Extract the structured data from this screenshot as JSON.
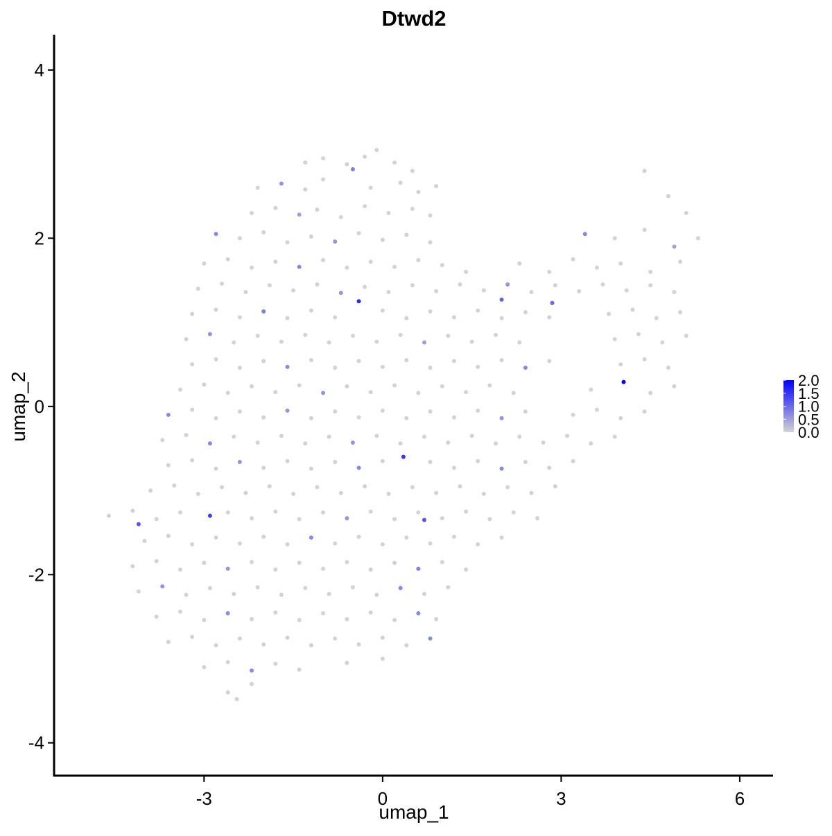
{
  "chart_data": {
    "type": "scatter",
    "title": "Dtwd2",
    "xlabel": "umap_1",
    "ylabel": "umap_2",
    "xlim": [
      -5.52,
      6.56
    ],
    "ylim": [
      -4.39,
      4.42
    ],
    "xticks": [
      -3,
      0,
      3,
      6
    ],
    "yticks": [
      -4,
      -2,
      0,
      2,
      4
    ],
    "color_low": "#d3d3d3",
    "color_high": "#0000ff",
    "color_lim": [
      0,
      2
    ],
    "color_ticks": [
      {
        "value": 0,
        "label": "0.0"
      },
      {
        "value": 0.5,
        "label": "0.5"
      },
      {
        "value": 1,
        "label": "1.0"
      },
      {
        "value": 1.5,
        "label": "1.5"
      },
      {
        "value": 2,
        "label": "2.0"
      }
    ],
    "points": [
      [
        -1.3,
        2.9,
        0
      ],
      [
        -1.0,
        2.95,
        0
      ],
      [
        -0.6,
        2.88,
        0
      ],
      [
        -0.3,
        2.97,
        0
      ],
      [
        -0.1,
        3.05,
        0
      ],
      [
        0.2,
        2.9,
        0
      ],
      [
        0.5,
        2.8,
        0
      ],
      [
        -2.1,
        2.6,
        0
      ],
      [
        -1.7,
        2.65,
        0.6
      ],
      [
        -1.3,
        2.58,
        0
      ],
      [
        -1.0,
        2.7,
        0
      ],
      [
        -0.5,
        2.82,
        0.8
      ],
      [
        -0.2,
        2.6,
        0
      ],
      [
        0.3,
        2.66,
        0
      ],
      [
        0.6,
        2.55,
        0
      ],
      [
        0.9,
        2.62,
        0
      ],
      [
        -2.2,
        2.3,
        0
      ],
      [
        -1.8,
        2.36,
        0
      ],
      [
        -1.4,
        2.28,
        0.5
      ],
      [
        -1.1,
        2.34,
        0
      ],
      [
        -0.7,
        2.25,
        0
      ],
      [
        -0.3,
        2.38,
        0
      ],
      [
        0.1,
        2.3,
        0
      ],
      [
        0.5,
        2.35,
        0
      ],
      [
        0.8,
        2.27,
        0
      ],
      [
        4.4,
        2.8,
        0
      ],
      [
        4.8,
        2.5,
        0
      ],
      [
        5.1,
        2.3,
        0
      ],
      [
        -2.8,
        2.05,
        0.7
      ],
      [
        -2.4,
        2.0,
        0
      ],
      [
        -2.0,
        2.07,
        0
      ],
      [
        -1.6,
        1.95,
        0
      ],
      [
        -1.2,
        2.02,
        0
      ],
      [
        -0.8,
        1.96,
        0.6
      ],
      [
        -0.4,
        2.06,
        0
      ],
      [
        0,
        1.98,
        0
      ],
      [
        0.4,
        2.04,
        0
      ],
      [
        0.8,
        1.95,
        0
      ],
      [
        3.4,
        2.05,
        0.7
      ],
      [
        3.9,
        2.0,
        0
      ],
      [
        4.4,
        2.1,
        0
      ],
      [
        4.9,
        1.9,
        0.5
      ],
      [
        5.3,
        2.0,
        0
      ],
      [
        -3.0,
        1.7,
        0
      ],
      [
        -2.6,
        1.75,
        0
      ],
      [
        -2.2,
        1.65,
        0
      ],
      [
        -1.8,
        1.72,
        0
      ],
      [
        -1.4,
        1.66,
        0.7
      ],
      [
        -1.0,
        1.74,
        0
      ],
      [
        -0.6,
        1.65,
        0
      ],
      [
        -0.2,
        1.72,
        0
      ],
      [
        0.2,
        1.66,
        0
      ],
      [
        0.6,
        1.74,
        0
      ],
      [
        1.0,
        1.68,
        0
      ],
      [
        1.4,
        1.6,
        0
      ],
      [
        2.3,
        1.7,
        0
      ],
      [
        2.8,
        1.6,
        0
      ],
      [
        3.2,
        1.75,
        0
      ],
      [
        3.6,
        1.65,
        0
      ],
      [
        4.0,
        1.7,
        0
      ],
      [
        4.5,
        1.6,
        0
      ],
      [
        5.0,
        1.72,
        0
      ],
      [
        -3.1,
        1.4,
        0
      ],
      [
        -2.7,
        1.46,
        0
      ],
      [
        -2.3,
        1.36,
        0
      ],
      [
        -1.9,
        1.44,
        0
      ],
      [
        -1.5,
        1.38,
        0
      ],
      [
        -1.1,
        1.45,
        0
      ],
      [
        -0.7,
        1.35,
        0.6
      ],
      [
        -0.3,
        1.42,
        0
      ],
      [
        0.1,
        1.36,
        0
      ],
      [
        0.5,
        1.44,
        0
      ],
      [
        0.9,
        1.37,
        0
      ],
      [
        1.3,
        1.45,
        0
      ],
      [
        1.7,
        1.38,
        0
      ],
      [
        2.1,
        1.45,
        0.6
      ],
      [
        2.5,
        1.36,
        0
      ],
      [
        2.9,
        1.44,
        0
      ],
      [
        3.3,
        1.37,
        0
      ],
      [
        3.7,
        1.45,
        0
      ],
      [
        4.1,
        1.38,
        0
      ],
      [
        4.5,
        1.44,
        0
      ],
      [
        4.9,
        1.36,
        0
      ],
      [
        -0.4,
        1.25,
        1.6
      ],
      [
        2.0,
        1.27,
        1.1
      ],
      [
        2.85,
        1.23,
        1.0
      ],
      [
        -3.2,
        1.1,
        0
      ],
      [
        -2.8,
        1.15,
        0
      ],
      [
        -2.4,
        1.06,
        0
      ],
      [
        -2.0,
        1.13,
        0.8
      ],
      [
        -1.6,
        1.05,
        0
      ],
      [
        -1.2,
        1.14,
        0
      ],
      [
        -0.8,
        1.06,
        0
      ],
      [
        0,
        1.14,
        0
      ],
      [
        0.4,
        1.05,
        0
      ],
      [
        0.8,
        1.13,
        0
      ],
      [
        1.2,
        1.06,
        0
      ],
      [
        1.6,
        1.14,
        0
      ],
      [
        2.0,
        1.05,
        0
      ],
      [
        2.4,
        1.12,
        0
      ],
      [
        2.8,
        1.06,
        0
      ],
      [
        3.8,
        1.1,
        0
      ],
      [
        4.2,
        1.15,
        0
      ],
      [
        4.6,
        1.05,
        0
      ],
      [
        5.0,
        1.12,
        0
      ],
      [
        -3.3,
        0.8,
        0
      ],
      [
        -2.9,
        0.86,
        0.6
      ],
      [
        -2.5,
        0.76,
        0
      ],
      [
        -2.1,
        0.84,
        0
      ],
      [
        -1.7,
        0.77,
        0
      ],
      [
        -1.3,
        0.85,
        0
      ],
      [
        -0.9,
        0.76,
        0
      ],
      [
        -0.5,
        0.84,
        0
      ],
      [
        -0.1,
        0.77,
        0
      ],
      [
        0.3,
        0.85,
        0
      ],
      [
        0.7,
        0.76,
        0.5
      ],
      [
        1.1,
        0.84,
        0
      ],
      [
        1.5,
        0.77,
        0
      ],
      [
        1.9,
        0.85,
        0
      ],
      [
        2.3,
        0.76,
        0
      ],
      [
        3.9,
        0.8,
        0
      ],
      [
        4.3,
        0.86,
        0
      ],
      [
        4.7,
        0.76,
        0
      ],
      [
        5.1,
        0.84,
        0
      ],
      [
        -3.2,
        0.5,
        0
      ],
      [
        -2.8,
        0.56,
        0
      ],
      [
        -2.4,
        0.46,
        0
      ],
      [
        -2.0,
        0.54,
        0
      ],
      [
        -1.6,
        0.47,
        0.7
      ],
      [
        -1.2,
        0.55,
        0
      ],
      [
        -0.8,
        0.46,
        0
      ],
      [
        -0.4,
        0.54,
        0
      ],
      [
        0,
        0.47,
        0
      ],
      [
        0.4,
        0.55,
        0
      ],
      [
        0.8,
        0.46,
        0
      ],
      [
        1.2,
        0.54,
        0
      ],
      [
        1.6,
        0.47,
        0
      ],
      [
        2.0,
        0.55,
        0
      ],
      [
        2.4,
        0.46,
        0.7
      ],
      [
        2.8,
        0.54,
        0
      ],
      [
        4.0,
        0.5,
        0
      ],
      [
        4.4,
        0.56,
        0
      ],
      [
        4.8,
        0.46,
        0
      ],
      [
        -3.4,
        0.2,
        0
      ],
      [
        -3.0,
        0.26,
        0
      ],
      [
        -2.6,
        0.16,
        0
      ],
      [
        -2.2,
        0.24,
        0
      ],
      [
        -1.8,
        0.17,
        0
      ],
      [
        -1.4,
        0.25,
        0
      ],
      [
        -1.0,
        0.16,
        0.6
      ],
      [
        -0.6,
        0.24,
        0
      ],
      [
        -0.2,
        0.17,
        0
      ],
      [
        0.2,
        0.25,
        0
      ],
      [
        0.6,
        0.16,
        0
      ],
      [
        1.0,
        0.24,
        0
      ],
      [
        1.4,
        0.17,
        0
      ],
      [
        1.8,
        0.25,
        0
      ],
      [
        2.2,
        0.16,
        0
      ],
      [
        3.5,
        0.2,
        0
      ],
      [
        4.05,
        0.29,
        2
      ],
      [
        4.5,
        0.16,
        0
      ],
      [
        4.9,
        0.24,
        0
      ],
      [
        -3.6,
        -0.1,
        0.7
      ],
      [
        -3.2,
        -0.04,
        0
      ],
      [
        -2.8,
        -0.14,
        0
      ],
      [
        -2.4,
        -0.06,
        0
      ],
      [
        -2.0,
        -0.13,
        0
      ],
      [
        -1.6,
        -0.05,
        0.6
      ],
      [
        -1.2,
        -0.14,
        0
      ],
      [
        -0.8,
        -0.06,
        0
      ],
      [
        -0.4,
        -0.13,
        0
      ],
      [
        0,
        -0.05,
        0
      ],
      [
        0.4,
        -0.14,
        0
      ],
      [
        0.8,
        -0.06,
        0
      ],
      [
        1.2,
        -0.13,
        0
      ],
      [
        1.6,
        -0.05,
        0
      ],
      [
        2.0,
        -0.14,
        0.6
      ],
      [
        2.4,
        -0.06,
        0
      ],
      [
        3.2,
        -0.1,
        0
      ],
      [
        3.6,
        -0.04,
        0
      ],
      [
        4.0,
        -0.14,
        0
      ],
      [
        4.4,
        -0.06,
        0
      ],
      [
        -3.7,
        -0.4,
        0
      ],
      [
        -3.3,
        -0.34,
        0
      ],
      [
        -2.9,
        -0.44,
        0.7
      ],
      [
        -2.5,
        -0.36,
        0
      ],
      [
        -2.1,
        -0.43,
        0
      ],
      [
        -1.7,
        -0.35,
        0
      ],
      [
        -1.3,
        -0.44,
        0
      ],
      [
        -0.9,
        -0.36,
        0
      ],
      [
        -0.5,
        -0.43,
        0.6
      ],
      [
        -0.1,
        -0.35,
        0
      ],
      [
        0.3,
        -0.44,
        0
      ],
      [
        0.7,
        -0.36,
        0
      ],
      [
        1.1,
        -0.43,
        0
      ],
      [
        1.5,
        -0.35,
        0
      ],
      [
        1.9,
        -0.44,
        0
      ],
      [
        2.3,
        -0.36,
        0
      ],
      [
        2.7,
        -0.43,
        0
      ],
      [
        3.1,
        -0.35,
        0
      ],
      [
        3.5,
        -0.44,
        0
      ],
      [
        3.9,
        -0.36,
        0
      ],
      [
        0.35,
        -0.6,
        1.5
      ],
      [
        -3.6,
        -0.7,
        0
      ],
      [
        -3.2,
        -0.64,
        0
      ],
      [
        -2.8,
        -0.74,
        0
      ],
      [
        -2.4,
        -0.66,
        0.6
      ],
      [
        -2.0,
        -0.73,
        0
      ],
      [
        -1.6,
        -0.65,
        0
      ],
      [
        -1.2,
        -0.74,
        0
      ],
      [
        -0.8,
        -0.66,
        0
      ],
      [
        -0.4,
        -0.73,
        0.7
      ],
      [
        0,
        -0.65,
        0
      ],
      [
        0.8,
        -0.66,
        0
      ],
      [
        1.2,
        -0.73,
        0
      ],
      [
        1.6,
        -0.65,
        0
      ],
      [
        2.0,
        -0.74,
        0.7
      ],
      [
        2.4,
        -0.66,
        0
      ],
      [
        2.8,
        -0.73,
        0
      ],
      [
        3.2,
        -0.65,
        0
      ],
      [
        -3.9,
        -1.0,
        0
      ],
      [
        -3.5,
        -0.94,
        0
      ],
      [
        -3.1,
        -1.04,
        0
      ],
      [
        -2.7,
        -0.96,
        0
      ],
      [
        -2.3,
        -1.03,
        0
      ],
      [
        -1.9,
        -0.95,
        0
      ],
      [
        -1.5,
        -1.04,
        0
      ],
      [
        -1.1,
        -0.96,
        0
      ],
      [
        -0.7,
        -1.03,
        0
      ],
      [
        -0.3,
        -0.95,
        0
      ],
      [
        0.1,
        -1.04,
        0
      ],
      [
        0.5,
        -0.96,
        0
      ],
      [
        0.9,
        -1.03,
        0
      ],
      [
        1.3,
        -0.95,
        0
      ],
      [
        1.7,
        -1.04,
        0
      ],
      [
        2.1,
        -0.96,
        0
      ],
      [
        2.5,
        -1.03,
        0
      ],
      [
        2.9,
        -0.95,
        0
      ],
      [
        -4.6,
        -1.3,
        0
      ],
      [
        -4.2,
        -1.24,
        0
      ],
      [
        -3.8,
        -1.34,
        0
      ],
      [
        -3.4,
        -1.26,
        0
      ],
      [
        -2.9,
        -1.3,
        1.4
      ],
      [
        -2.6,
        -1.26,
        0
      ],
      [
        -2.2,
        -1.33,
        0
      ],
      [
        -1.8,
        -1.25,
        0
      ],
      [
        -1.4,
        -1.34,
        0
      ],
      [
        -1.0,
        -1.26,
        0
      ],
      [
        -0.6,
        -1.33,
        0.6
      ],
      [
        -0.2,
        -1.25,
        0
      ],
      [
        0.2,
        -1.34,
        0
      ],
      [
        0.6,
        -1.26,
        0
      ],
      [
        1.0,
        -1.33,
        0
      ],
      [
        1.4,
        -1.25,
        0
      ],
      [
        1.8,
        -1.34,
        0
      ],
      [
        2.2,
        -1.26,
        0
      ],
      [
        2.6,
        -1.33,
        0
      ],
      [
        -4.1,
        -1.4,
        1.2
      ],
      [
        0.7,
        -1.35,
        1.2
      ],
      [
        -4.0,
        -1.6,
        0
      ],
      [
        -3.6,
        -1.54,
        0
      ],
      [
        -3.2,
        -1.64,
        0
      ],
      [
        -2.8,
        -1.56,
        0
      ],
      [
        -2.4,
        -1.63,
        0
      ],
      [
        -2.0,
        -1.55,
        0
      ],
      [
        -1.6,
        -1.64,
        0
      ],
      [
        -1.2,
        -1.56,
        0.7
      ],
      [
        -0.8,
        -1.63,
        0
      ],
      [
        -0.4,
        -1.55,
        0
      ],
      [
        0,
        -1.64,
        0
      ],
      [
        0.4,
        -1.56,
        0
      ],
      [
        0.8,
        -1.63,
        0
      ],
      [
        1.2,
        -1.55,
        0
      ],
      [
        1.6,
        -1.64,
        0
      ],
      [
        2.0,
        -1.56,
        0
      ],
      [
        -4.2,
        -1.9,
        0
      ],
      [
        -3.8,
        -1.84,
        0
      ],
      [
        -3.4,
        -1.94,
        0
      ],
      [
        -3.0,
        -1.86,
        0
      ],
      [
        -2.6,
        -1.93,
        0.6
      ],
      [
        -2.2,
        -1.85,
        0
      ],
      [
        -1.8,
        -1.94,
        0
      ],
      [
        -1.4,
        -1.86,
        0
      ],
      [
        -1.0,
        -1.93,
        0
      ],
      [
        -0.6,
        -1.85,
        0
      ],
      [
        -0.2,
        -1.94,
        0
      ],
      [
        0.2,
        -1.86,
        0
      ],
      [
        0.6,
        -1.93,
        0.8
      ],
      [
        1.0,
        -1.85,
        0
      ],
      [
        1.4,
        -1.94,
        0
      ],
      [
        -4.1,
        -2.2,
        0
      ],
      [
        -3.7,
        -2.14,
        0.6
      ],
      [
        -3.3,
        -2.24,
        0
      ],
      [
        -2.9,
        -2.16,
        0
      ],
      [
        -2.5,
        -2.23,
        0
      ],
      [
        -2.1,
        -2.15,
        0
      ],
      [
        -1.7,
        -2.24,
        0
      ],
      [
        -1.3,
        -2.16,
        0
      ],
      [
        -0.9,
        -2.23,
        0
      ],
      [
        -0.5,
        -2.15,
        0
      ],
      [
        -0.1,
        -2.24,
        0
      ],
      [
        0.3,
        -2.16,
        0.7
      ],
      [
        0.7,
        -2.23,
        0
      ],
      [
        1.1,
        -2.15,
        0
      ],
      [
        -3.8,
        -2.5,
        0
      ],
      [
        -3.4,
        -2.44,
        0
      ],
      [
        -3.0,
        -2.54,
        0
      ],
      [
        -2.6,
        -2.46,
        0.7
      ],
      [
        -2.2,
        -2.53,
        0
      ],
      [
        -1.8,
        -2.45,
        0
      ],
      [
        -1.4,
        -2.54,
        0
      ],
      [
        -1.0,
        -2.46,
        0
      ],
      [
        -0.6,
        -2.53,
        0
      ],
      [
        -0.2,
        -2.45,
        0
      ],
      [
        0.2,
        -2.54,
        0
      ],
      [
        0.6,
        -2.46,
        0.7
      ],
      [
        0.9,
        -2.53,
        0
      ],
      [
        -3.6,
        -2.8,
        0
      ],
      [
        -3.2,
        -2.74,
        0
      ],
      [
        -2.8,
        -2.84,
        0
      ],
      [
        -2.4,
        -2.76,
        0
      ],
      [
        -2.0,
        -2.83,
        0
      ],
      [
        -1.6,
        -2.75,
        0
      ],
      [
        -1.2,
        -2.84,
        0
      ],
      [
        -0.8,
        -2.76,
        0
      ],
      [
        -0.4,
        -2.83,
        0
      ],
      [
        0,
        -2.75,
        0
      ],
      [
        0.4,
        -2.84,
        0
      ],
      [
        0.8,
        -2.76,
        0.7
      ],
      [
        -3.0,
        -3.1,
        0
      ],
      [
        -2.6,
        -3.04,
        0
      ],
      [
        -2.2,
        -3.14,
        0.7
      ],
      [
        -1.8,
        -3.06,
        0
      ],
      [
        -1.4,
        -3.13,
        0
      ],
      [
        -0.6,
        -3.05,
        0
      ],
      [
        0,
        -3.0,
        0
      ],
      [
        -2.6,
        -3.4,
        0
      ],
      [
        -2.2,
        -3.3,
        0
      ],
      [
        -2.45,
        -3.48,
        0
      ]
    ]
  }
}
